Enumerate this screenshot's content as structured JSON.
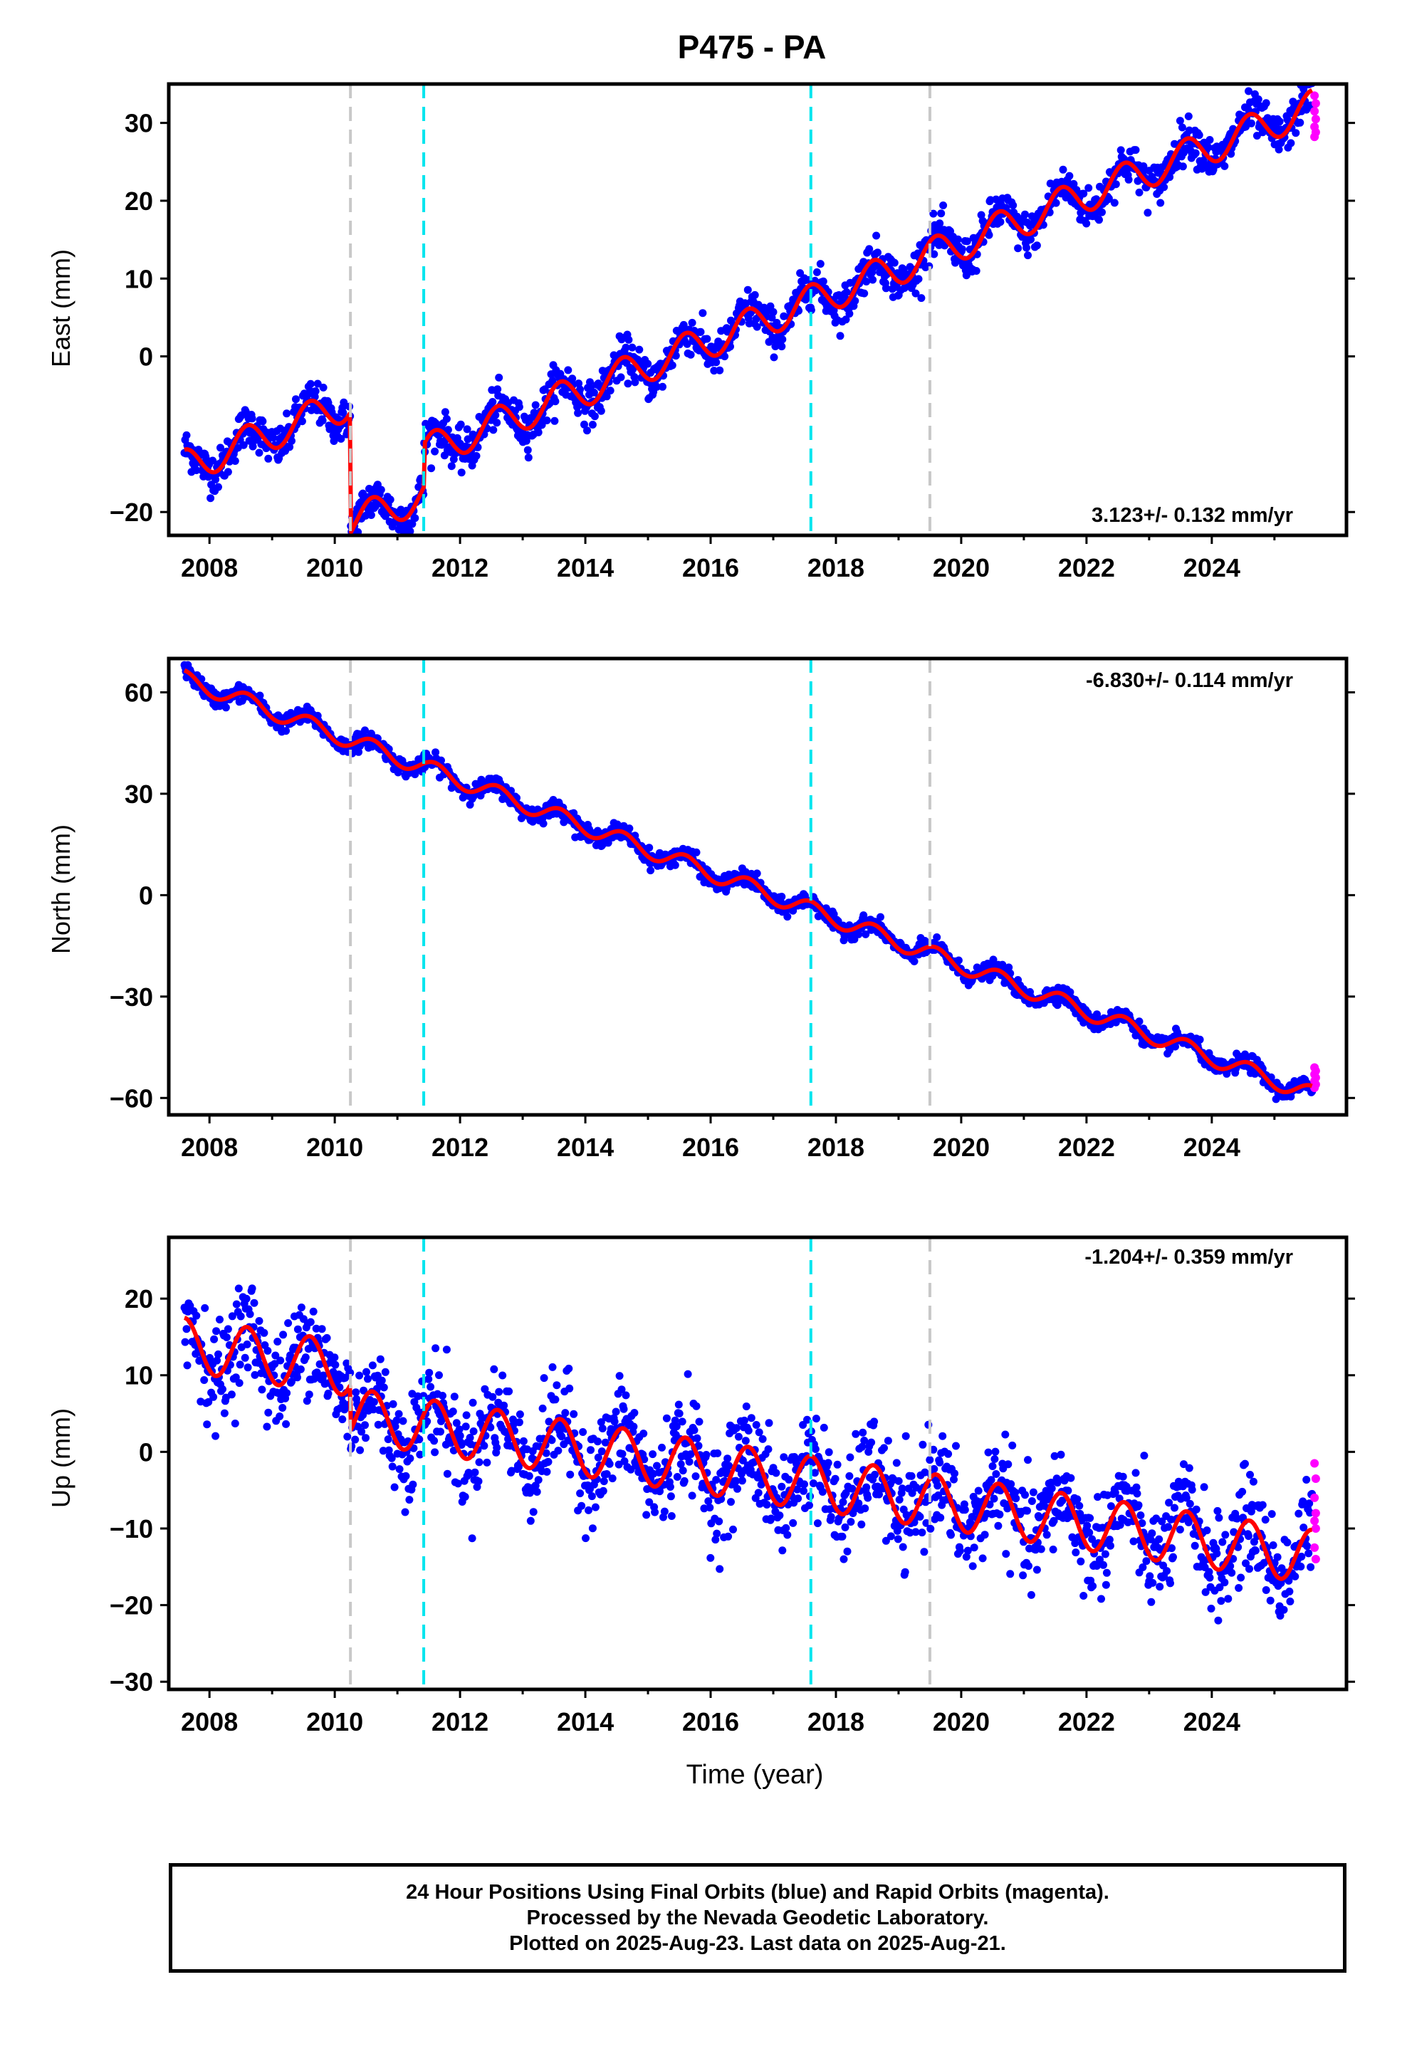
{
  "title": "P475 - PA",
  "colors": {
    "final_orbits": "#0000ff",
    "rapid_orbits": "#ff00ff",
    "model_fit": "#ff0000",
    "equipment_change": "#c8c8c8",
    "earthquake": "#00e5ee"
  },
  "footer": {
    "line1": "24 Hour Positions Using Final Orbits (blue) and Rapid Orbits (magenta).",
    "line2": "Processed by the Nevada Geodetic Laboratory.",
    "line3": "Plotted on 2025-Aug-23. Last data on 2025-Aug-21."
  },
  "chart_data": [
    {
      "type": "scatter",
      "panel": "east",
      "ylabel": "East (mm)",
      "xlabel": "",
      "rate_label": "3.123+/- 0.132 mm/yr",
      "xlim": [
        2007.35,
        2026.15
      ],
      "ylim": [
        -23,
        35
      ],
      "x_ticks": [
        "2008",
        "2010",
        "2012",
        "2014",
        "2016",
        "2018",
        "2020",
        "2022",
        "2024"
      ],
      "y_ticks": [
        "30",
        "20",
        "10",
        "0",
        "−20"
      ],
      "y_tick_values": [
        30,
        20,
        10,
        0,
        -20
      ],
      "vlines_gray": [
        2010.25,
        2019.5
      ],
      "vlines_cyan": [
        2011.42,
        2017.6
      ],
      "model": {
        "trend_start": [
          2007.6,
          -14.2
        ],
        "rate": 3.123,
        "seasonal_amplitude": 2.2,
        "offsets": [
          {
            "epoch": 2010.25,
            "jump": -15.5
          },
          {
            "epoch": 2011.42,
            "jump": 5.5
          }
        ]
      },
      "scatter_sigma": 1.3,
      "x_start": 2007.6,
      "x_end": 2025.6,
      "rapid_values": [
        33.5,
        32.5,
        31.5,
        30.5,
        29.5,
        28.8,
        28.2
      ]
    },
    {
      "type": "scatter",
      "panel": "north",
      "ylabel": "North (mm)",
      "xlabel": "",
      "rate_label": "-6.830+/- 0.114 mm/yr",
      "xlim": [
        2007.35,
        2026.15
      ],
      "ylim": [
        -65,
        70
      ],
      "x_ticks": [
        "2008",
        "2010",
        "2012",
        "2014",
        "2016",
        "2018",
        "2020",
        "2022",
        "2024"
      ],
      "y_ticks": [
        "60",
        "30",
        "0",
        "−30",
        "−60"
      ],
      "y_tick_values": [
        60,
        30,
        0,
        -30,
        -60
      ],
      "vlines_gray": [
        2010.25,
        2019.5
      ],
      "vlines_cyan": [
        2011.42,
        2017.6
      ],
      "model": {
        "trend_start": [
          2007.6,
          64
        ],
        "rate": -6.83,
        "seasonal_amplitude": 2.5,
        "offsets": []
      },
      "scatter_sigma": 1.2,
      "x_start": 2007.6,
      "x_end": 2025.6,
      "rapid_values": [
        -51,
        -52,
        -53,
        -54,
        -55,
        -56,
        -57
      ]
    },
    {
      "type": "scatter",
      "panel": "up",
      "ylabel": "Up (mm)",
      "xlabel": "Time (year)",
      "rate_label": "-1.204+/- 0.359 mm/yr",
      "xlim": [
        2007.35,
        2026.15
      ],
      "ylim": [
        -31,
        28
      ],
      "x_ticks": [
        "2008",
        "2010",
        "2012",
        "2014",
        "2016",
        "2018",
        "2020",
        "2022",
        "2024"
      ],
      "y_ticks": [
        "20",
        "10",
        "0",
        "−10",
        "−20",
        "−30"
      ],
      "y_tick_values": [
        20,
        10,
        0,
        -10,
        -20,
        -30
      ],
      "vlines_gray": [
        2010.25,
        2019.5
      ],
      "vlines_cyan": [
        2011.42,
        2017.6
      ],
      "model": {
        "trend_start": [
          2007.6,
          14
        ],
        "rate": -1.204,
        "seasonal_amplitude": 3.5,
        "offsets": [
          {
            "epoch": 2010.25,
            "jump": -6
          }
        ]
      },
      "scatter_sigma": 3.2,
      "x_start": 2007.6,
      "x_end": 2025.6,
      "rapid_values": [
        -1.5,
        -3.5,
        -6,
        -8,
        -9,
        -10,
        -12.5,
        -14
      ]
    }
  ]
}
